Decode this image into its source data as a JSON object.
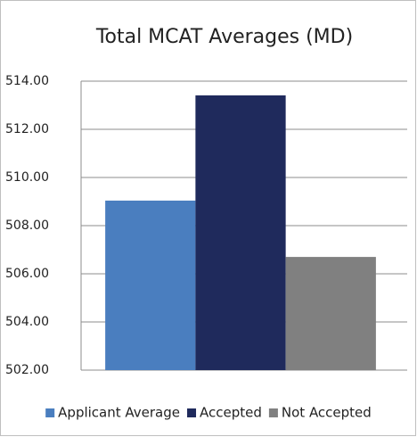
{
  "chart_data": {
    "type": "bar",
    "title": "Total MCAT Averages (MD)",
    "categories": [
      null
    ],
    "series": [
      {
        "name": "Applicant Average",
        "color": "#4a7ebf",
        "values": [
          509.04
        ]
      },
      {
        "name": "Accepted",
        "color": "#1f2a5c",
        "values": [
          513.41
        ]
      },
      {
        "name": "Not Accepted",
        "color": "#808080",
        "values": [
          506.7
        ]
      }
    ],
    "ylim": [
      502,
      514
    ],
    "yticks": [
      {
        "value": 502,
        "label": "502.00"
      },
      {
        "value": 504,
        "label": "504.00"
      },
      {
        "value": 506,
        "label": "506.00"
      },
      {
        "value": 508,
        "label": "508.00"
      },
      {
        "value": 510,
        "label": "510.00"
      },
      {
        "value": 512,
        "label": "512.00"
      },
      {
        "value": 514,
        "label": "514.00"
      }
    ],
    "grid": true,
    "legend": "bottom"
  }
}
